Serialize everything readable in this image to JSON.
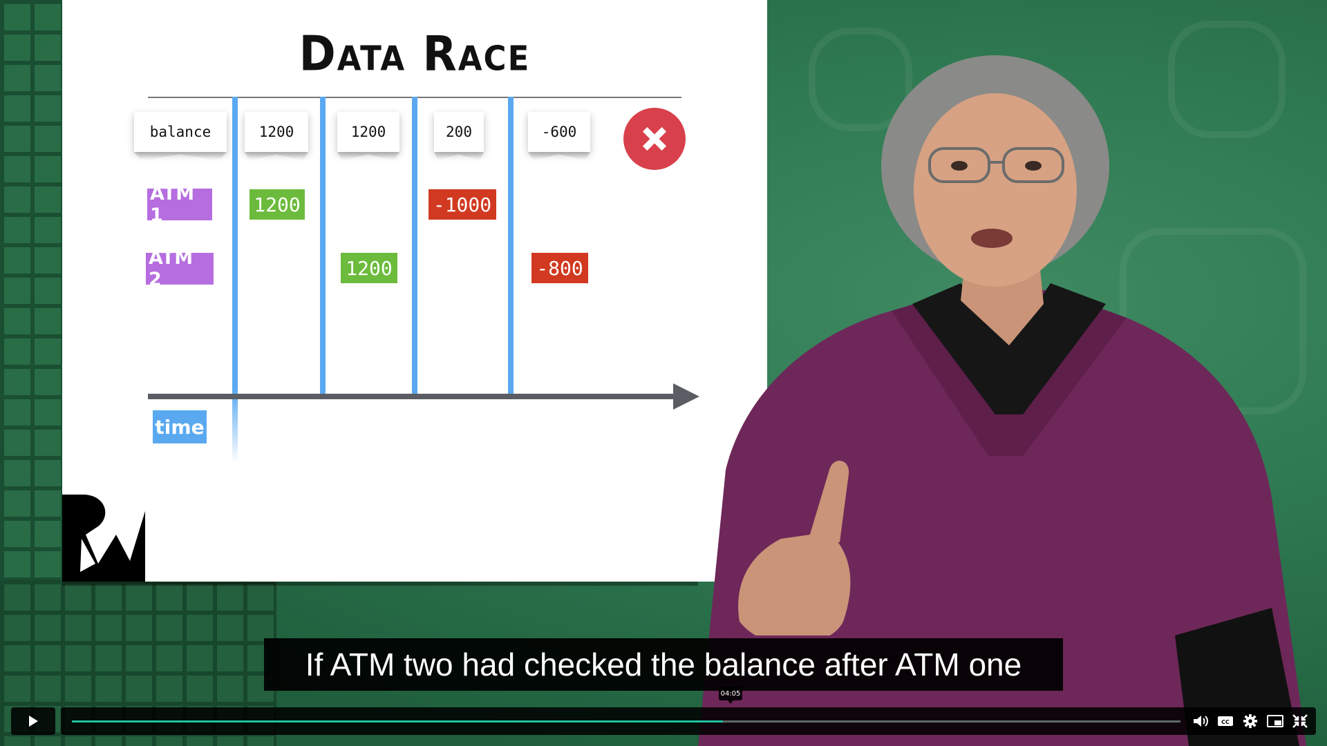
{
  "slide": {
    "title": "Data Race",
    "tags": [
      "balance",
      "1200",
      "1200",
      "200",
      "-600"
    ],
    "atm_labels": [
      "ATM 1",
      "ATM 2"
    ],
    "atm1_values": [
      "1200",
      "-1000"
    ],
    "atm2_values": [
      "1200",
      "-800"
    ],
    "time_label": "time",
    "error_icon": "x-circle-icon",
    "colors": {
      "atm": "#b66de0",
      "positive": "#6cbb3c",
      "negative": "#d13a20",
      "timeline": "#5aa9f0",
      "error": "#d8414b"
    }
  },
  "caption": "If ATM two had checked the balance after ATM one",
  "player": {
    "current_time": "04:05",
    "progress_fraction": 0.587,
    "icons": [
      "play-icon",
      "volume-icon",
      "closed-captions-icon",
      "settings-icon",
      "picture-in-picture-icon",
      "fullscreen-exit-icon"
    ],
    "accent": "#1ec4a0"
  }
}
